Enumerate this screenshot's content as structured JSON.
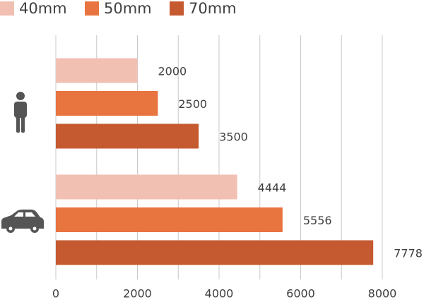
{
  "chart_data": {
    "type": "barh",
    "categories": [
      null,
      null
    ],
    "series": [
      {
        "name": "40mm",
        "color": "#f2c0b2",
        "values": [
          2000,
          4444
        ]
      },
      {
        "name": "50mm",
        "color": "#e8743f",
        "values": [
          2500,
          5556
        ]
      },
      {
        "name": "70mm",
        "color": "#c55a30",
        "values": [
          3500,
          7778
        ]
      }
    ],
    "xlim": [
      0,
      8000
    ],
    "xticks": [
      0,
      2000,
      4000,
      6000,
      8000
    ],
    "xminorticks": [
      1000,
      3000,
      5000,
      7000
    ],
    "grid": true,
    "legend": "top"
  }
}
